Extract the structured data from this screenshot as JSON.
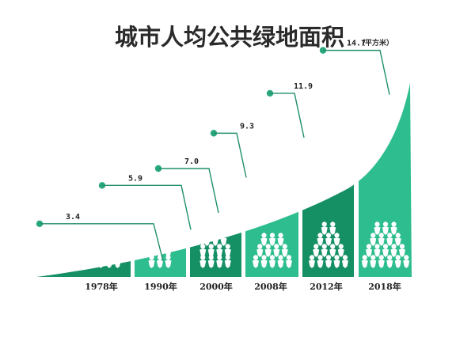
{
  "chart_data": {
    "type": "bar",
    "title": "城市人均公共绿地面积",
    "unit": "（平方米）",
    "categories": [
      "1978年",
      "1990年",
      "2000年",
      "2008年",
      "2012年",
      "2018年"
    ],
    "values": [
      3.4,
      5.9,
      7.0,
      9.3,
      11.9,
      14.7
    ],
    "value_labels": [
      "3.4",
      "5.9",
      "7.0",
      "9.3",
      "11.9",
      "14.7"
    ],
    "people_icon_rows": [
      [
        3
      ],
      [
        3,
        3
      ],
      [
        3,
        4,
        4
      ],
      [
        3,
        4,
        5
      ],
      [
        2,
        3,
        4,
        5
      ],
      [
        3,
        4,
        5,
        6
      ]
    ],
    "colors": {
      "light_green": "#2dbd8f",
      "dark_green": "#159064",
      "callout_line": "#1f8f6a",
      "callout_dot": "#2aa87c",
      "icon": "#ffffff",
      "title": "#2a2a2a",
      "label": "#222222"
    },
    "bar_shades": [
      "dark_green",
      "light_green",
      "dark_green",
      "light_green",
      "dark_green",
      "light_green"
    ]
  }
}
